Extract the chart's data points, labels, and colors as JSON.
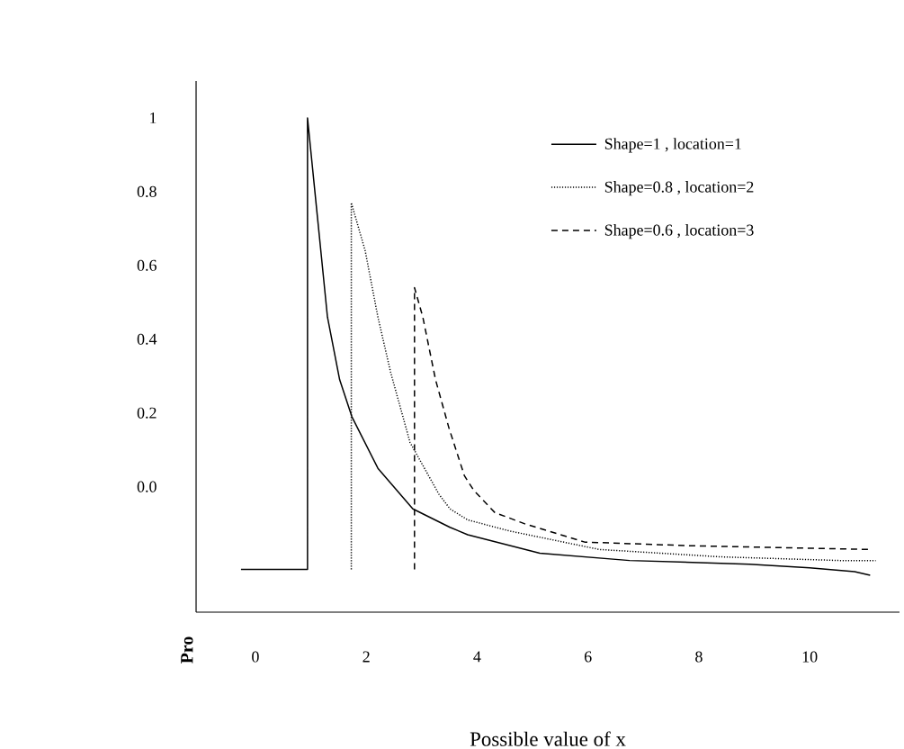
{
  "chart_data": {
    "type": "line",
    "xlabel": "Possible value of x",
    "ylabel": "Pro",
    "xlim": [
      -1.07,
      11.62
    ],
    "ylim": [
      -0.34,
      1.1
    ],
    "xticks": [
      0,
      2,
      4,
      6,
      8,
      10
    ],
    "yticks": [
      {
        "value": 0,
        "label": "0.0"
      },
      0.2,
      0.4,
      0.6,
      0.8,
      1
    ],
    "legend": "top right",
    "grid": false,
    "marker": "none",
    "series": [
      {
        "name": "Shape=1 , location=1",
        "color": "#000000",
        "line_style": "solid",
        "x": [
          -0.26,
          0.94,
          0.94,
          1.12,
          1.3,
          1.52,
          1.74,
          2.21,
          2.84,
          3.51,
          3.83,
          5.13,
          6.75,
          8.91,
          10.0,
          10.81,
          11.09
        ],
        "values": [
          -0.224,
          -0.224,
          1.0,
          0.73,
          0.46,
          0.29,
          0.19,
          0.05,
          -0.06,
          -0.11,
          -0.13,
          -0.18,
          -0.2,
          -0.21,
          -0.22,
          -0.23,
          -0.24
        ]
      },
      {
        "name": "Shape=0.8 , location=2",
        "color": "#000000",
        "line_style": "dotted",
        "x": [
          1.73,
          1.73,
          1.98,
          2.21,
          2.44,
          2.79,
          3.31,
          3.51,
          3.83,
          4.59,
          6.2,
          8.38,
          10.54,
          11.19
        ],
        "values": [
          -0.224,
          0.77,
          0.64,
          0.46,
          0.31,
          0.12,
          -0.02,
          -0.06,
          -0.09,
          -0.12,
          -0.17,
          -0.19,
          -0.2,
          -0.2
        ]
      },
      {
        "name": "Shape=0.6 , location=3",
        "color": "#000000",
        "line_style": "dashed",
        "x": [
          2.87,
          2.87,
          3.02,
          3.25,
          3.49,
          3.77,
          3.94,
          4.32,
          4.85,
          5.94,
          7.84,
          11.06
        ],
        "values": [
          -0.224,
          0.54,
          0.46,
          0.29,
          0.16,
          0.03,
          -0.01,
          -0.07,
          -0.1,
          -0.15,
          -0.16,
          -0.17
        ]
      }
    ]
  }
}
